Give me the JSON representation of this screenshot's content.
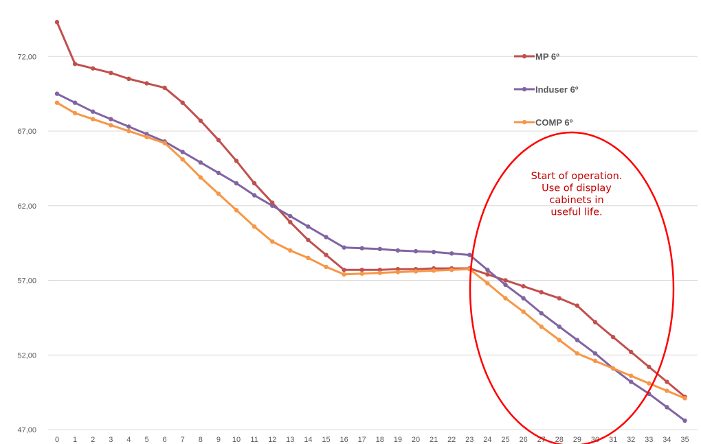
{
  "chart_data": {
    "type": "line",
    "title": "",
    "xlabel": "",
    "ylabel": "",
    "x": [
      0,
      1,
      2,
      3,
      4,
      5,
      6,
      7,
      8,
      9,
      10,
      11,
      12,
      13,
      14,
      15,
      16,
      17,
      18,
      19,
      20,
      21,
      22,
      23,
      24,
      25,
      26,
      27,
      28,
      29,
      30,
      31,
      32,
      33,
      34,
      35
    ],
    "y_ticks": [
      "47,00",
      "52,00",
      "57,00",
      "62,00",
      "67,00",
      "72,00"
    ],
    "y_tick_values": [
      47,
      52,
      57,
      62,
      67,
      72
    ],
    "ylim": [
      47,
      75.5
    ],
    "xlim": [
      0,
      35
    ],
    "grid": "horizontal",
    "legend_position": "top-right",
    "series": [
      {
        "name": "MP 6º",
        "color": "#c0504d",
        "values": [
          74.3,
          71.5,
          71.2,
          70.9,
          70.5,
          70.2,
          69.9,
          68.9,
          67.7,
          66.4,
          65.0,
          63.5,
          62.2,
          60.9,
          59.7,
          58.7,
          57.7,
          57.7,
          57.7,
          57.75,
          57.75,
          57.8,
          57.8,
          57.8,
          57.4,
          57.0,
          56.6,
          56.2,
          55.8,
          55.3,
          54.2,
          53.2,
          52.2,
          51.2,
          50.2,
          49.2
        ]
      },
      {
        "name": "Induser 6º",
        "color": "#8064a2",
        "values": [
          69.5,
          68.9,
          68.3,
          67.8,
          67.3,
          66.8,
          66.3,
          65.6,
          64.9,
          64.2,
          63.5,
          62.7,
          62.0,
          61.3,
          60.6,
          59.9,
          59.2,
          59.15,
          59.1,
          59.0,
          58.95,
          58.9,
          58.8,
          58.7,
          57.7,
          56.7,
          55.8,
          54.8,
          53.9,
          53.0,
          52.1,
          51.1,
          50.2,
          49.4,
          48.5,
          47.6
        ]
      },
      {
        "name": "COMP 6º",
        "color": "#f79646",
        "values": [
          68.9,
          68.2,
          67.8,
          67.4,
          67.0,
          66.6,
          66.2,
          65.1,
          63.9,
          62.8,
          61.7,
          60.6,
          59.6,
          59.0,
          58.5,
          57.9,
          57.4,
          57.45,
          57.5,
          57.55,
          57.6,
          57.65,
          57.7,
          57.75,
          56.8,
          55.8,
          54.9,
          53.9,
          53.0,
          52.1,
          51.6,
          51.1,
          50.6,
          50.1,
          49.6,
          49.1
        ]
      }
    ],
    "annotation": {
      "lines": [
        "Start of operation.",
        "Use of display",
        "cabinets in",
        "useful life."
      ],
      "color": "#c00000",
      "ellipse_color": "#ff0000"
    }
  }
}
